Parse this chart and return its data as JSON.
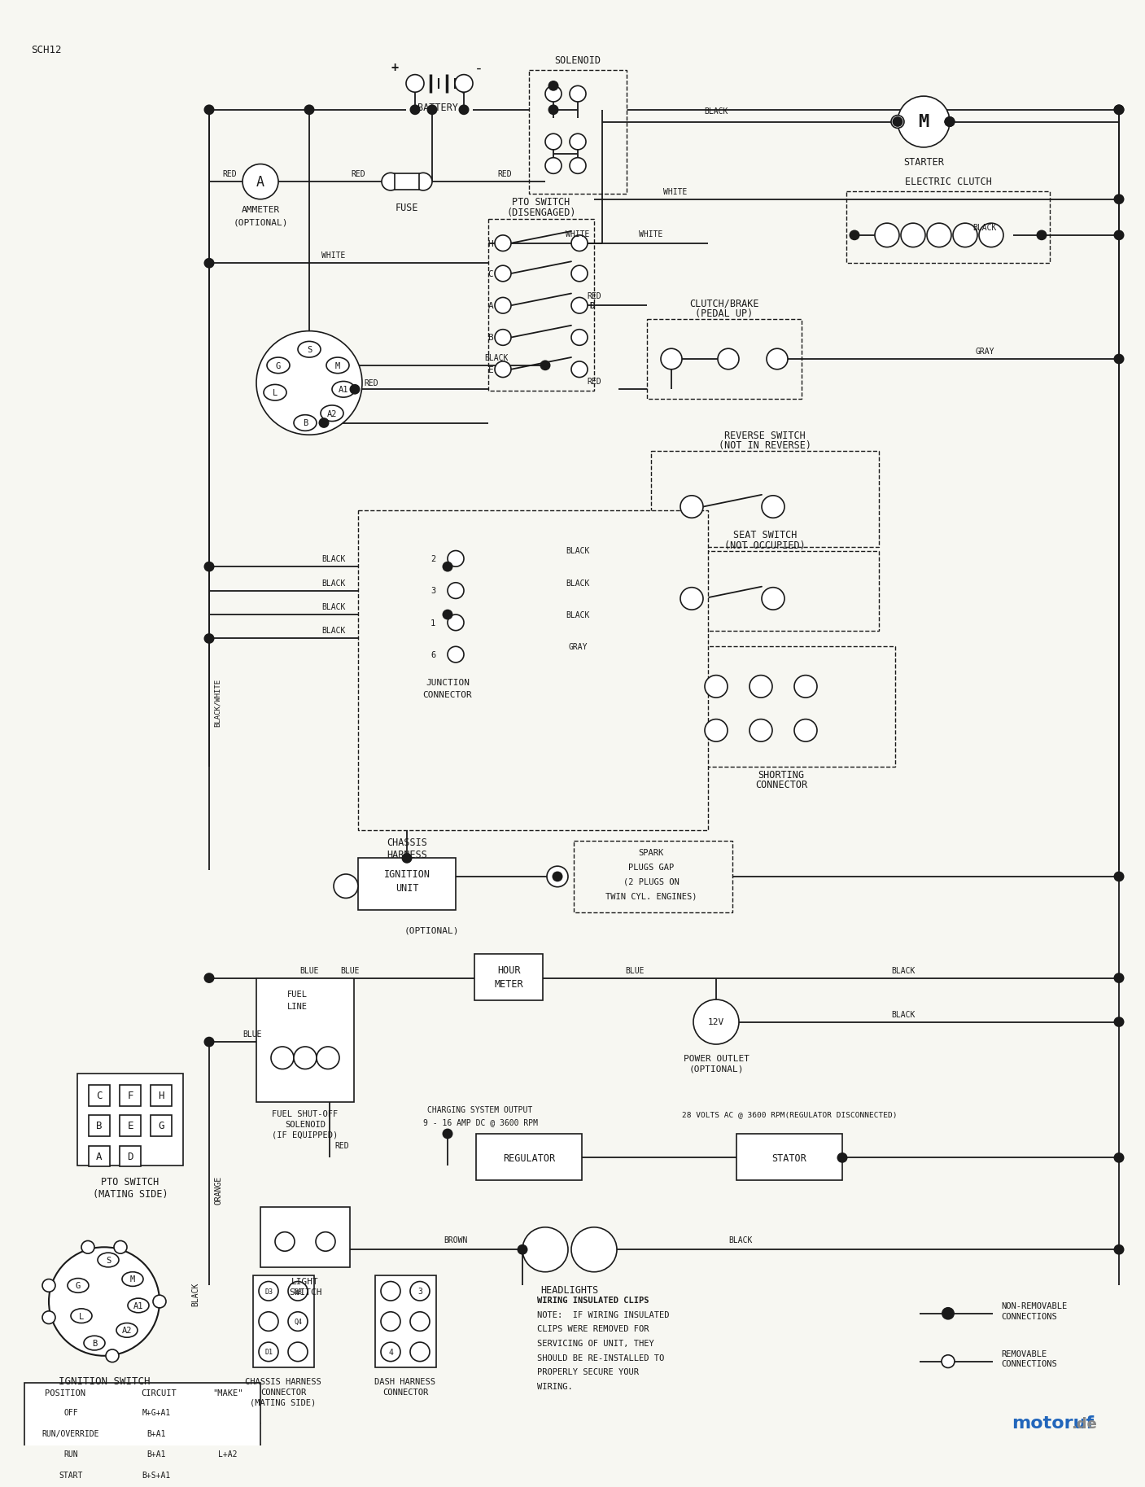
{
  "title": "SCH12",
  "bg_color": "#f7f7f2",
  "line_color": "#1a1a1a",
  "text_color": "#1a1a1a",
  "watermark_text": "motoruf",
  "watermark_de": ".de",
  "components": {
    "battery_label": "BATTERY",
    "solenoid_label": "SOLENOID",
    "starter_label": "STARTER",
    "ammeter_label": [
      "AMMETER",
      "(OPTIONAL)"
    ],
    "fuse_label": "FUSE",
    "pto_label": [
      "PTO SWITCH",
      "(DISENGAGED)"
    ],
    "electric_clutch_label": "ELECTRIC CLUTCH",
    "clutch_brake_label": [
      "CLUTCH/BRAKE",
      "(PEDAL UP)"
    ],
    "reverse_switch_label": [
      "REVERSE SWITCH",
      "(NOT IN REVERSE)"
    ],
    "seat_switch_label": [
      "SEAT SWITCH",
      "(NOT OCCUPIED)"
    ],
    "junction_label": [
      "JUNCTION",
      "CONNECTOR"
    ],
    "chassis_harness_label": [
      "CHASSIS",
      "HARNESS"
    ],
    "shorting_label": [
      "SHORTING",
      "CONNECTOR"
    ],
    "ignition_unit_label": [
      "IGNITION",
      "UNIT"
    ],
    "spark_label": [
      "SPARK",
      "PLUGS GAP",
      "(2 PLUGS ON",
      "TWIN CYL. ENGINES)"
    ],
    "optional_label": "(OPTIONAL)",
    "hour_meter_label": [
      "HOUR",
      "METER"
    ],
    "fuel_line_label": [
      "FUEL",
      "LINE"
    ],
    "fuel_shutoff_label": [
      "FUEL SHUT-OFF",
      "SOLENOID",
      "(IF EQUIPPED)"
    ],
    "charging_label": [
      "CHARGING SYSTEM OUTPUT",
      "9 - 16 AMP DC @ 3600 RPM"
    ],
    "regulator_label": "REGULATOR",
    "stator_label": "STATOR",
    "power_outlet_label": [
      "POWER OUTLET",
      "(OPTIONAL)"
    ],
    "light_switch_label": [
      "LIGHT",
      "SWITCH"
    ],
    "headlights_label": "HEADLIGHTS",
    "pto_switch_mating": [
      "PTO SWITCH",
      "(MATING SIDE)"
    ],
    "ignition_switch_label": "IGNITION SWITCH",
    "chassis_harness_connector": [
      "CHASSIS HARNESS",
      "CONNECTOR",
      "(MATING SIDE)"
    ],
    "dash_harness_connector": [
      "DASH HARNESS",
      "CONNECTOR"
    ],
    "wiring_note": [
      "WIRING INSULATED CLIPS",
      "NOTE:  IF WIRING INSULATED",
      "CLIPS WERE REMOVED FOR",
      "SERVICING OF UNIT, THEY",
      "SHOULD BE RE-INSTALLED TO",
      "PROPERLY SECURE YOUR",
      "WIRING."
    ],
    "non_removable_label": [
      "NON-REMOVABLE",
      "CONNECTIONS"
    ],
    "removable_label": [
      "REMOVABLE",
      "CONNECTIONS"
    ]
  },
  "wire_labels": {
    "red": "RED",
    "black": "BLACK",
    "white": "WHITE",
    "gray": "GRAY",
    "blue": "BLUE",
    "orange": "ORANGE",
    "brown": "BROWN",
    "black_white": "BLACK/WHITE"
  },
  "position_table": {
    "headers": [
      "POSITION",
      "CIRCUIT",
      "\"MAKE\""
    ],
    "rows": [
      [
        "OFF",
        "M+G+A1",
        ""
      ],
      [
        "RUN/OVERRIDE",
        "B+A1",
        ""
      ],
      [
        "RUN",
        "B+A1",
        "L+A2"
      ],
      [
        "START",
        "B+S+A1",
        ""
      ]
    ]
  },
  "volts_label": "28 VOLTS AC @ 3600 RPM(REGULATOR DISCONNECTED)"
}
